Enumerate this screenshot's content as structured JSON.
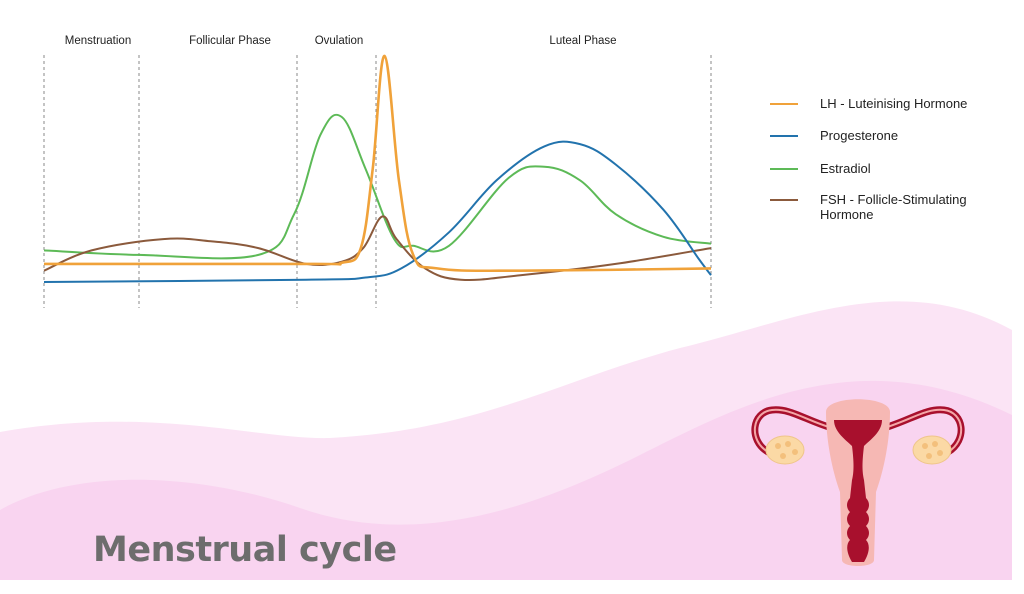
{
  "chart_data": {
    "type": "line",
    "title": "Menstrual cycle",
    "phases": [
      "Menstruation",
      "Follicular Phase",
      "Ovulation",
      "Luteal Phase"
    ],
    "xlabel": "",
    "ylabel": "",
    "x_range": [
      0,
      28
    ],
    "y_range": [
      0,
      100
    ],
    "grid": false,
    "legend_position": "right",
    "series": [
      {
        "name": "LH - Luteinising Hormone",
        "color": "#f0a23a",
        "x": [
          0,
          11,
          12.5,
          13.3,
          13.8,
          14.3,
          14.9,
          15.5,
          16.5,
          20,
          28
        ],
        "values": [
          8,
          8,
          8.5,
          15,
          50,
          100,
          45,
          12,
          6,
          5,
          6
        ]
      },
      {
        "name": "Progesterone",
        "color": "#2273ad",
        "x": [
          0,
          11,
          13.5,
          15,
          17,
          19,
          21,
          22.5,
          24,
          26,
          27.5,
          28
        ],
        "values": [
          0,
          1,
          2,
          6,
          22,
          45,
          60,
          61,
          52,
          32,
          10,
          3
        ]
      },
      {
        "name": "Estradiol",
        "color": "#5dba57",
        "x": [
          0,
          4,
          9,
          10.5,
          11.6,
          12.5,
          13.5,
          14.7,
          15.5,
          17,
          19.5,
          21,
          22.5,
          24,
          26,
          28
        ],
        "values": [
          14,
          12,
          12,
          30,
          65,
          73,
          50,
          19,
          16,
          16,
          46,
          51,
          45,
          30,
          20,
          17
        ]
      },
      {
        "name": "FSH - Follicle-Stimulating Hormone",
        "color": "#8b5a3c",
        "x": [
          0,
          2,
          5,
          7,
          9,
          11,
          12.5,
          13.4,
          14.2,
          14.8,
          16,
          17.5,
          20,
          24,
          28
        ],
        "values": [
          5,
          14,
          19,
          18,
          15,
          8,
          9,
          15,
          29,
          19,
          6,
          1,
          3,
          8,
          15
        ]
      }
    ]
  }
}
